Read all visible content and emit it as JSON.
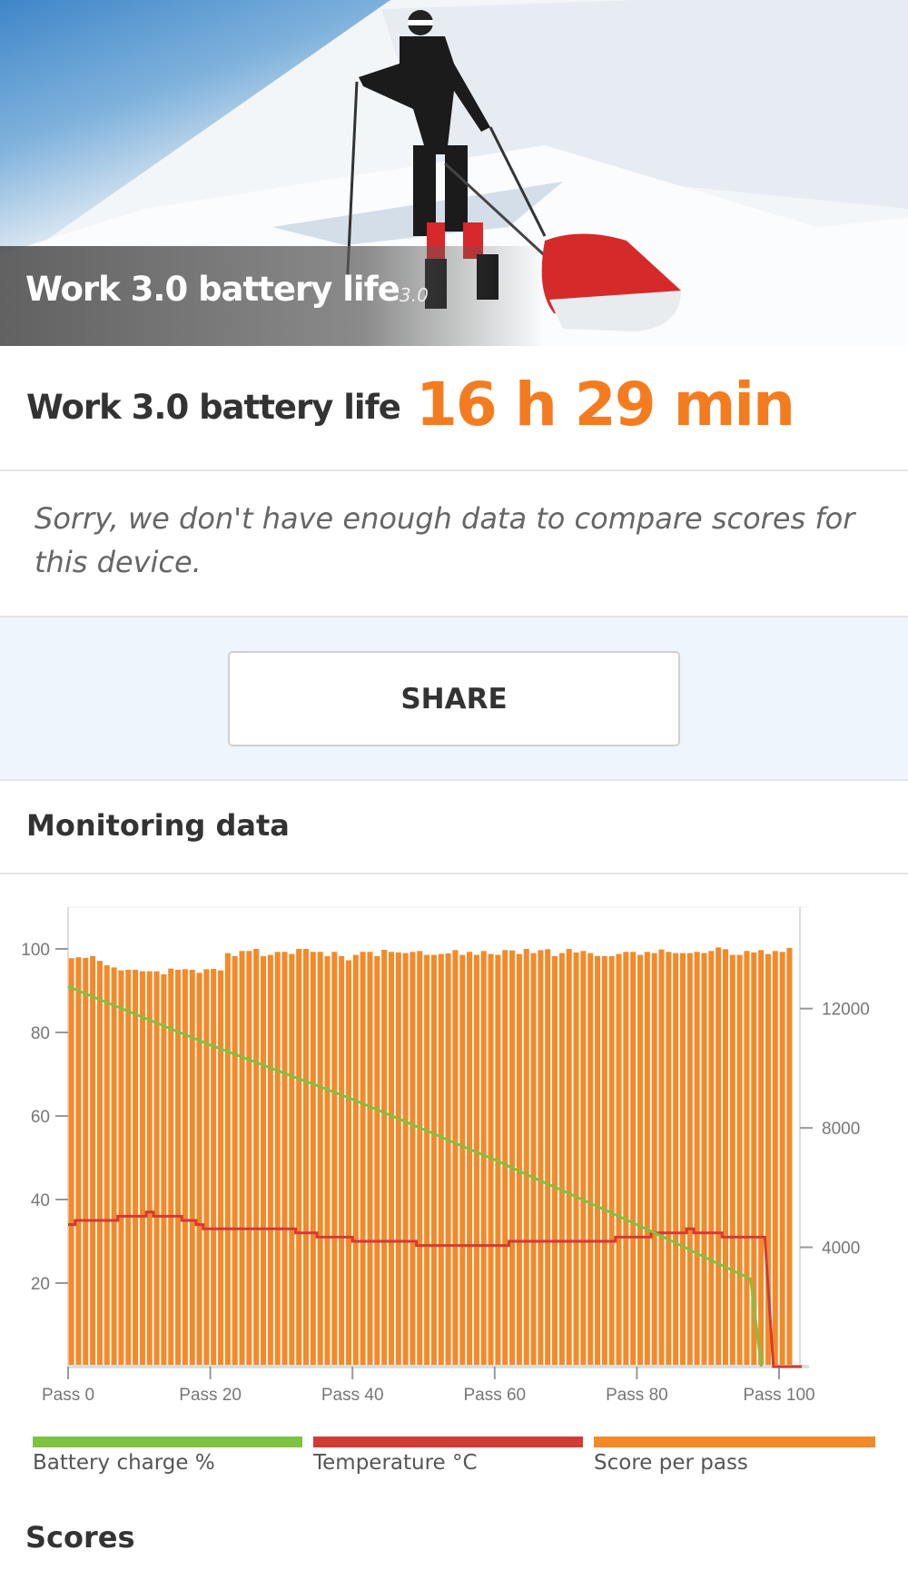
{
  "hero": {
    "title": "Work 3.0 battery life",
    "version": "3.0"
  },
  "score": {
    "label": "Work 3.0 battery life",
    "value": "16 h 29 min",
    "color": "#f47c20"
  },
  "message": "Sorry, we don't have enough data to compare scores for this device.",
  "share_label": "SHARE",
  "monitoring": {
    "title": "Monitoring data"
  },
  "scores_title": "Scores",
  "chart_data": {
    "type": "bar+line",
    "x_tick_labels": [
      "Pass 0",
      "Pass 20",
      "Pass 40",
      "Pass 60",
      "Pass 80",
      "Pass 100"
    ],
    "x_ticks": [
      0,
      20,
      40,
      60,
      80,
      100
    ],
    "left_axis": {
      "ticks": [
        20,
        40,
        60,
        80,
        100
      ],
      "range": [
        0,
        110
      ]
    },
    "right_axis": {
      "ticks": [
        4000,
        8000,
        12000
      ],
      "range": [
        0,
        15400
      ]
    },
    "legend": [
      {
        "name": "Battery charge %",
        "color": "#7dc243"
      },
      {
        "name": "Temperature °C",
        "color": "#d23b33"
      },
      {
        "name": "Score per pass",
        "color": "#f38a2a"
      }
    ],
    "legend_placement": "bottom",
    "score_per_pass": [
      13690,
      13720,
      13700,
      13760,
      13600,
      13450,
      13380,
      13280,
      13300,
      13300,
      13250,
      13250,
      13250,
      13150,
      13340,
      13300,
      13320,
      13300,
      13200,
      13320,
      13330,
      13280,
      13860,
      13760,
      13930,
      13930,
      14000,
      13760,
      13800,
      13900,
      13900,
      13830,
      14000,
      14000,
      13900,
      13900,
      13760,
      13900,
      13760,
      13620,
      13800,
      13900,
      13900,
      13760,
      13970,
      13900,
      13880,
      13860,
      13900,
      13930,
      13800,
      13800,
      13830,
      13850,
      13960,
      13800,
      13900,
      13800,
      13930,
      13830,
      13800,
      13960,
      13950,
      13830,
      14000,
      13860,
      13960,
      13990,
      13760,
      13860,
      14000,
      13880,
      13930,
      13860,
      13760,
      13760,
      13760,
      13830,
      13900,
      13900,
      13800,
      13900,
      13860,
      13980,
      13900,
      13860,
      13860,
      13860,
      13900,
      13860,
      13930,
      14050,
      13990,
      13800,
      13800,
      13930,
      13880,
      13960,
      13830,
      13930,
      13900,
      14030
    ],
    "battery_charge": [
      [
        0,
        91
      ],
      [
        5,
        87.5
      ],
      [
        10,
        84
      ],
      [
        15,
        80.5
      ],
      [
        20,
        77
      ],
      [
        25,
        73.8
      ],
      [
        30,
        70.5
      ],
      [
        35,
        67.3
      ],
      [
        40,
        64
      ],
      [
        45,
        60.4
      ],
      [
        50,
        56.8
      ],
      [
        55,
        53.1
      ],
      [
        60,
        49.5
      ],
      [
        65,
        45.6
      ],
      [
        70,
        41.8
      ],
      [
        75,
        37.9
      ],
      [
        80,
        34
      ],
      [
        85,
        30
      ],
      [
        90,
        25.8
      ],
      [
        96,
        21
      ],
      [
        97.5,
        0
      ]
    ],
    "temperature_steps": [
      [
        0,
        34
      ],
      [
        1,
        35
      ],
      [
        7,
        36
      ],
      [
        11,
        37
      ],
      [
        12,
        36
      ],
      [
        16,
        35
      ],
      [
        18,
        34
      ],
      [
        19,
        33
      ],
      [
        32,
        32
      ],
      [
        35,
        31
      ],
      [
        40,
        30
      ],
      [
        49,
        29
      ],
      [
        62,
        30
      ],
      [
        77,
        31
      ],
      [
        82,
        32
      ],
      [
        87,
        33
      ],
      [
        88,
        32
      ],
      [
        92,
        31
      ],
      [
        97,
        31
      ],
      [
        98,
        0
      ],
      [
        102,
        0
      ]
    ]
  }
}
